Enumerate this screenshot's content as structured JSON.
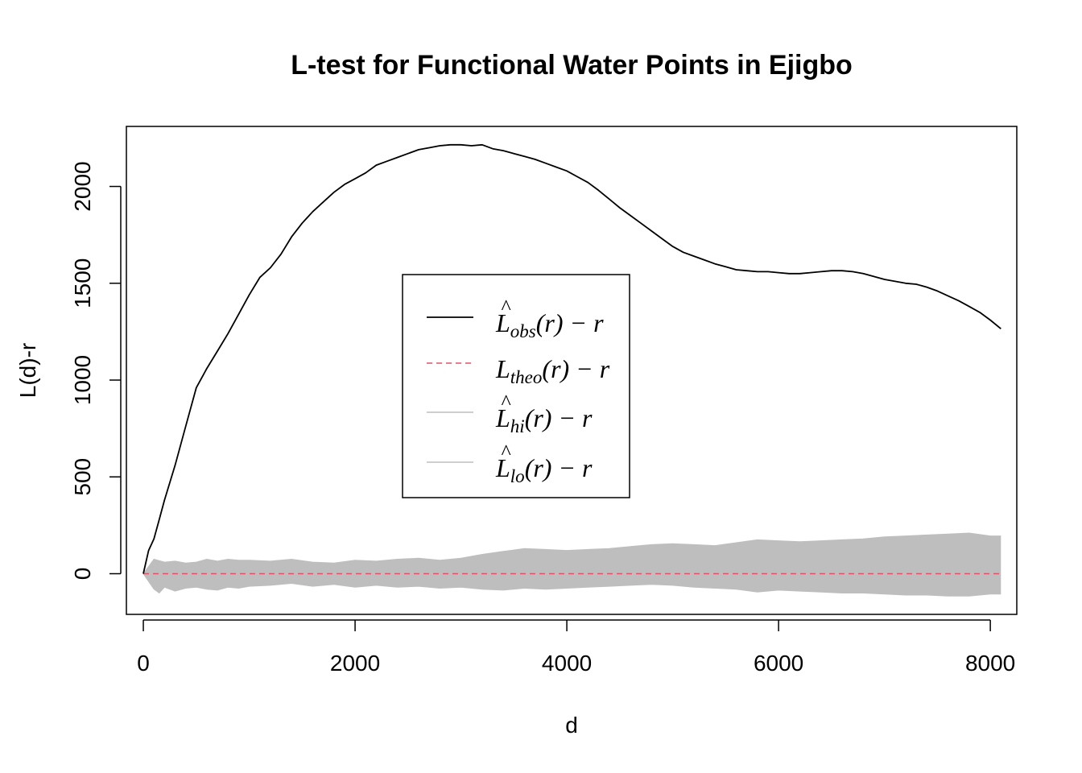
{
  "chart_data": {
    "type": "line",
    "title": "L-test for Functional Water Points in Ejigbo",
    "xlabel": "d",
    "ylabel": "L(d)-r",
    "xlim": [
      -160,
      8250
    ],
    "ylim": [
      -210,
      2310
    ],
    "x_ticks": [
      0,
      2000,
      4000,
      6000,
      8000
    ],
    "x_tick_labels": [
      "0",
      "2000",
      "4000",
      "6000",
      "8000"
    ],
    "y_ticks": [
      0,
      500,
      1000,
      1500,
      2000
    ],
    "y_tick_labels": [
      "0",
      "500",
      "1000",
      "1500",
      "2000"
    ],
    "grid": false,
    "legend_position": "center",
    "colors": {
      "obs": "#000000",
      "theo": "#DF536B",
      "envelope": "#BEBEBE",
      "axis": "#000000",
      "background": "#FFFFFF"
    },
    "legend": [
      {
        "key": "obs",
        "main": "L",
        "hat": "^",
        "sub": "obs",
        "suffix": "(r) − r",
        "line": "solid",
        "color": "#000000"
      },
      {
        "key": "theo",
        "main": "L",
        "hat": "",
        "sub": "theo",
        "suffix": "(r) − r",
        "line": "dashed",
        "color": "#DF536B"
      },
      {
        "key": "hi",
        "main": "L",
        "hat": "^",
        "sub": "hi",
        "suffix": "(r) − r",
        "line": "solid",
        "color": "#BEBEBE"
      },
      {
        "key": "lo",
        "main": "L",
        "hat": "^",
        "sub": "lo",
        "suffix": "(r) − r",
        "line": "solid",
        "color": "#BEBEBE"
      }
    ],
    "series": [
      {
        "key": "obs",
        "x": [
          0,
          50,
          100,
          150,
          200,
          300,
          400,
          500,
          600,
          700,
          800,
          900,
          1000,
          1100,
          1200,
          1300,
          1400,
          1500,
          1600,
          1700,
          1800,
          1900,
          2000,
          2100,
          2200,
          2300,
          2400,
          2500,
          2600,
          2700,
          2800,
          2900,
          3000,
          3100,
          3200,
          3300,
          3400,
          3500,
          3600,
          3700,
          3800,
          3900,
          4000,
          4100,
          4200,
          4300,
          4400,
          4500,
          4600,
          4700,
          4800,
          4900,
          5000,
          5100,
          5200,
          5300,
          5400,
          5500,
          5600,
          5700,
          5800,
          5900,
          6000,
          6100,
          6200,
          6300,
          6400,
          6500,
          6600,
          6700,
          6800,
          6900,
          7000,
          7100,
          7200,
          7300,
          7400,
          7500,
          7600,
          7700,
          7800,
          7900,
          8000,
          8100
        ],
        "y": [
          0,
          120,
          180,
          280,
          380,
          560,
          760,
          960,
          1060,
          1150,
          1240,
          1340,
          1440,
          1530,
          1580,
          1650,
          1740,
          1810,
          1870,
          1920,
          1970,
          2010,
          2040,
          2070,
          2110,
          2130,
          2150,
          2170,
          2190,
          2200,
          2210,
          2215,
          2215,
          2210,
          2215,
          2195,
          2185,
          2170,
          2155,
          2140,
          2120,
          2100,
          2080,
          2050,
          2020,
          1980,
          1935,
          1890,
          1850,
          1810,
          1770,
          1730,
          1690,
          1660,
          1640,
          1620,
          1600,
          1585,
          1570,
          1565,
          1560,
          1560,
          1555,
          1550,
          1550,
          1555,
          1560,
          1565,
          1565,
          1560,
          1550,
          1535,
          1520,
          1510,
          1500,
          1495,
          1480,
          1460,
          1435,
          1410,
          1380,
          1350,
          1310,
          1265
        ]
      },
      {
        "key": "theo",
        "x": [
          0,
          8100
        ],
        "y": [
          0,
          0
        ]
      },
      {
        "key": "hi",
        "x": [
          0,
          100,
          200,
          300,
          400,
          500,
          600,
          700,
          800,
          900,
          1000,
          1200,
          1400,
          1600,
          1800,
          2000,
          2200,
          2400,
          2600,
          2800,
          3000,
          3200,
          3400,
          3600,
          3800,
          4000,
          4200,
          4400,
          4600,
          4800,
          5000,
          5200,
          5400,
          5600,
          5800,
          6000,
          6200,
          6400,
          6600,
          6800,
          7000,
          7200,
          7400,
          7600,
          7800,
          8000,
          8100
        ],
        "y": [
          0,
          75,
          60,
          65,
          55,
          60,
          75,
          65,
          75,
          70,
          70,
          65,
          75,
          60,
          55,
          70,
          65,
          75,
          80,
          70,
          80,
          100,
          115,
          130,
          125,
          120,
          125,
          130,
          140,
          150,
          155,
          150,
          145,
          160,
          175,
          170,
          165,
          170,
          175,
          180,
          190,
          195,
          200,
          205,
          210,
          195,
          195
        ]
      },
      {
        "key": "lo",
        "x": [
          0,
          50,
          100,
          150,
          200,
          300,
          400,
          500,
          600,
          700,
          800,
          900,
          1000,
          1200,
          1400,
          1600,
          1800,
          2000,
          2200,
          2400,
          2600,
          2800,
          3000,
          3200,
          3400,
          3600,
          3800,
          4000,
          4200,
          4400,
          4600,
          4800,
          5000,
          5200,
          5400,
          5600,
          5800,
          6000,
          6200,
          6400,
          6600,
          6800,
          7000,
          7200,
          7400,
          7600,
          7800,
          8000,
          8100
        ],
        "y": [
          0,
          -40,
          -80,
          -100,
          -70,
          -90,
          -75,
          -70,
          -80,
          -85,
          -70,
          -75,
          -65,
          -60,
          -50,
          -65,
          -55,
          -70,
          -60,
          -70,
          -65,
          -75,
          -70,
          -80,
          -85,
          -75,
          -80,
          -75,
          -70,
          -65,
          -60,
          -55,
          -60,
          -70,
          -75,
          -80,
          -95,
          -85,
          -90,
          -95,
          -100,
          -100,
          -105,
          -110,
          -110,
          -115,
          -115,
          -105,
          -105
        ]
      }
    ]
  }
}
